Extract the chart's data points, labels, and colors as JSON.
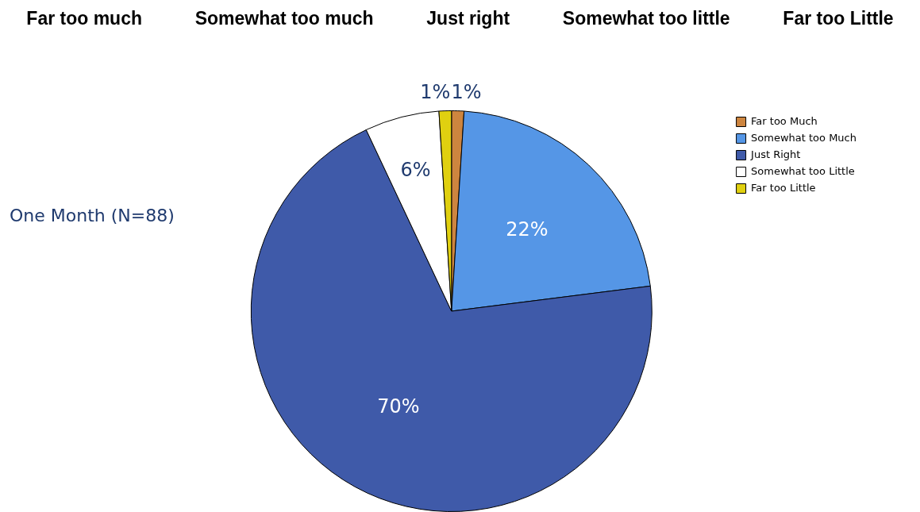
{
  "chart_data": {
    "type": "pie",
    "title": "One Month (N=88)",
    "annotations": [
      "Far too much",
      "Somewhat too much",
      "Just right",
      "Somewhat too little",
      "Far too Little"
    ],
    "categories": [
      "Far too Much",
      "Somewhat too Much",
      "Just Right",
      "Somewhat too Little",
      "Far too Little"
    ],
    "values": [
      1,
      22,
      70,
      6,
      1
    ],
    "colors": [
      "#cd853f",
      "#5596e6",
      "#3f5aa9",
      "#ffffff",
      "#e0d010"
    ],
    "value_labels": [
      "1%",
      "22%",
      "70%",
      "6%",
      "1%"
    ],
    "legend": "top right"
  }
}
